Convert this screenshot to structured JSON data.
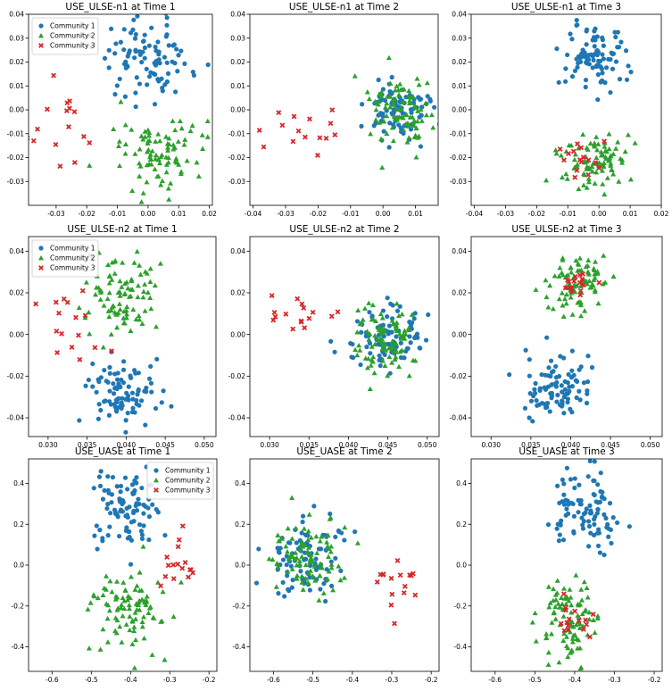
{
  "colors": {
    "Community 1": "#1f77b4",
    "Community 2": "#2ca02c",
    "Community 3": "#d62728"
  },
  "markers": {
    "Community 1": "circle",
    "Community 2": "triangle",
    "Community 3": "x"
  },
  "chart_data": [
    {
      "type": "scatter",
      "title": "USE_ULSE-n1 at Time 1",
      "xlim": [
        -0.039,
        0.021
      ],
      "ylim": [
        -0.04,
        0.04
      ],
      "xticks": [
        "-0.04",
        "-0.03",
        "-0.02",
        "-0.01",
        "0.00",
        "0.01",
        "0.02"
      ],
      "xtick_values": [
        -0.04,
        -0.03,
        -0.02,
        -0.01,
        0.0,
        0.01,
        0.02
      ],
      "yticks": [
        "-0.03",
        "-0.02",
        "-0.01",
        "0.00",
        "0.01",
        "0.02",
        "0.03",
        "0.04"
      ],
      "ytick_values": [
        -0.03,
        -0.02,
        -0.01,
        0.0,
        0.01,
        0.02,
        0.03,
        0.04
      ],
      "legend": {
        "placement": "upper-left",
        "entries": [
          "Community 1",
          "Community 2",
          "Community 3"
        ]
      },
      "series": [
        {
          "name": "Community 1",
          "cx": 0.0,
          "cy": 0.021,
          "sx": 0.0075,
          "sy": 0.0085,
          "n": 95
        },
        {
          "name": "Community 2",
          "cx": 0.005,
          "cy": -0.017,
          "sx": 0.007,
          "sy": 0.008,
          "n": 95
        },
        {
          "name": "Community 3",
          "cx": -0.025,
          "cy": -0.005,
          "sx": 0.007,
          "sy": 0.009,
          "n": 16
        }
      ]
    },
    {
      "type": "scatter",
      "title": "USE_ULSE-n1 at Time 2",
      "xlim": [
        -0.041,
        0.017
      ],
      "ylim": [
        -0.04,
        0.04
      ],
      "xticks": [
        "-0.04",
        "-0.03",
        "-0.02",
        "-0.01",
        "0.00",
        "0.01"
      ],
      "xtick_values": [
        -0.04,
        -0.03,
        -0.02,
        -0.01,
        0.0,
        0.01
      ],
      "yticks": [
        "-0.03",
        "-0.02",
        "-0.01",
        "0.00",
        "0.01",
        "0.02",
        "0.03",
        "0.04"
      ],
      "ytick_values": [
        -0.03,
        -0.02,
        -0.01,
        0.0,
        0.01,
        0.02,
        0.03,
        0.04
      ],
      "series": [
        {
          "name": "Community 1",
          "cx": 0.004,
          "cy": 0.0,
          "sx": 0.005,
          "sy": 0.006,
          "n": 95
        },
        {
          "name": "Community 2",
          "cx": 0.005,
          "cy": 0.0,
          "sx": 0.005,
          "sy": 0.0065,
          "n": 95
        },
        {
          "name": "Community 3",
          "cx": -0.023,
          "cy": -0.007,
          "sx": 0.007,
          "sy": 0.005,
          "n": 16
        }
      ]
    },
    {
      "type": "scatter",
      "title": "USE_ULSE-n1 at Time 3",
      "xlim": [
        -0.041,
        0.02
      ],
      "ylim": [
        -0.04,
        0.04
      ],
      "xticks": [
        "-0.04",
        "-0.03",
        "-0.02",
        "-0.01",
        "0.00",
        "0.01",
        "0.02"
      ],
      "xtick_values": [
        -0.04,
        -0.03,
        -0.02,
        -0.01,
        0.0,
        0.01,
        0.02
      ],
      "yticks": [
        "-0.03",
        "-0.02",
        "-0.01",
        "0.00",
        "0.01",
        "0.02",
        "0.03",
        "0.04"
      ],
      "ytick_values": [
        -0.03,
        -0.02,
        -0.01,
        0.0,
        0.01,
        0.02,
        0.03,
        0.04
      ],
      "series": [
        {
          "name": "Community 1",
          "cx": -0.002,
          "cy": 0.022,
          "sx": 0.0055,
          "sy": 0.0065,
          "n": 95
        },
        {
          "name": "Community 2",
          "cx": -0.001,
          "cy": -0.021,
          "sx": 0.006,
          "sy": 0.0065,
          "n": 95
        },
        {
          "name": "Community 3",
          "cx": -0.006,
          "cy": -0.02,
          "sx": 0.004,
          "sy": 0.004,
          "n": 16
        }
      ]
    },
    {
      "type": "scatter",
      "title": "USE_ULSE-n2 at Time 1",
      "xlim": [
        0.0275,
        0.0515
      ],
      "ylim": [
        -0.049,
        0.047
      ],
      "xticks": [
        "0.030",
        "0.035",
        "0.040",
        "0.045",
        "0.050"
      ],
      "xtick_values": [
        0.03,
        0.035,
        0.04,
        0.045,
        0.05
      ],
      "yticks": [
        "-0.04",
        "-0.02",
        "0.00",
        "0.02",
        "0.04"
      ],
      "ytick_values": [
        -0.04,
        -0.02,
        0.0,
        0.02,
        0.04
      ],
      "legend": {
        "placement": "upper-left",
        "entries": [
          "Community 1",
          "Community 2",
          "Community 3"
        ]
      },
      "series": [
        {
          "name": "Community 1",
          "cx": 0.0397,
          "cy": -0.027,
          "sx": 0.0022,
          "sy": 0.008,
          "n": 95
        },
        {
          "name": "Community 2",
          "cx": 0.0395,
          "cy": 0.02,
          "sx": 0.0023,
          "sy": 0.009,
          "n": 95
        },
        {
          "name": "Community 3",
          "cx": 0.033,
          "cy": 0.003,
          "sx": 0.0025,
          "sy": 0.01,
          "n": 16
        }
      ]
    },
    {
      "type": "scatter",
      "title": "USE_ULSE-n2 at Time 2",
      "xlim": [
        0.0275,
        0.0515
      ],
      "ylim": [
        -0.049,
        0.047
      ],
      "xticks": [
        "0.030",
        "0.035",
        "0.040",
        "0.045",
        "0.050"
      ],
      "xtick_values": [
        0.03,
        0.035,
        0.04,
        0.045,
        0.05
      ],
      "yticks": [
        "-0.04",
        "-0.02",
        "0.00",
        "0.02",
        "0.04"
      ],
      "ytick_values": [
        -0.04,
        -0.02,
        0.0,
        0.02,
        0.04
      ],
      "series": [
        {
          "name": "Community 1",
          "cx": 0.0445,
          "cy": -0.003,
          "sx": 0.0022,
          "sy": 0.008,
          "n": 95
        },
        {
          "name": "Community 2",
          "cx": 0.0445,
          "cy": -0.003,
          "sx": 0.0022,
          "sy": 0.0085,
          "n": 95
        },
        {
          "name": "Community 3",
          "cx": 0.034,
          "cy": 0.009,
          "sx": 0.0022,
          "sy": 0.005,
          "n": 16
        }
      ]
    },
    {
      "type": "scatter",
      "title": "USE_ULSE-n2 at Time 3",
      "xlim": [
        0.0275,
        0.0515
      ],
      "ylim": [
        -0.049,
        0.047
      ],
      "xticks": [
        "0.030",
        "0.035",
        "0.040",
        "0.045",
        "0.050"
      ],
      "xtick_values": [
        0.03,
        0.035,
        0.04,
        0.045,
        0.05
      ],
      "yticks": [
        "-0.04",
        "-0.02",
        "0.00",
        "0.02",
        "0.04"
      ],
      "ytick_values": [
        -0.04,
        -0.02,
        0.0,
        0.02,
        0.04
      ],
      "series": [
        {
          "name": "Community 1",
          "cx": 0.0385,
          "cy": -0.025,
          "sx": 0.0022,
          "sy": 0.008,
          "n": 95
        },
        {
          "name": "Community 2",
          "cx": 0.0405,
          "cy": 0.025,
          "sx": 0.0018,
          "sy": 0.008,
          "n": 95
        },
        {
          "name": "Community 3",
          "cx": 0.0405,
          "cy": 0.025,
          "sx": 0.0013,
          "sy": 0.005,
          "n": 16
        }
      ]
    },
    {
      "type": "scatter",
      "title": "USE_UASE at Time 1",
      "xlim": [
        -0.66,
        -0.18
      ],
      "ylim": [
        -0.52,
        0.52
      ],
      "xticks": [
        "-0.6",
        "-0.5",
        "-0.4",
        "-0.3",
        "-0.2"
      ],
      "xtick_values": [
        -0.6,
        -0.5,
        -0.4,
        -0.3,
        -0.2
      ],
      "yticks": [
        "-0.4",
        "-0.2",
        "0.0",
        "0.2",
        "0.4"
      ],
      "ytick_values": [
        -0.4,
        -0.2,
        0.0,
        0.2,
        0.4
      ],
      "legend": {
        "placement": "upper-right",
        "entries": [
          "Community 1",
          "Community 2",
          "Community 3"
        ]
      },
      "series": [
        {
          "name": "Community 1",
          "cx": -0.41,
          "cy": 0.27,
          "sx": 0.04,
          "sy": 0.09,
          "n": 95
        },
        {
          "name": "Community 2",
          "cx": -0.4,
          "cy": -0.23,
          "sx": 0.05,
          "sy": 0.1,
          "n": 95
        },
        {
          "name": "Community 3",
          "cx": -0.27,
          "cy": -0.02,
          "sx": 0.03,
          "sy": 0.08,
          "n": 16
        }
      ]
    },
    {
      "type": "scatter",
      "title": "USE_UASE at Time 2",
      "xlim": [
        -0.66,
        -0.18
      ],
      "ylim": [
        -0.52,
        0.52
      ],
      "xticks": [
        "-0.6",
        "-0.5",
        "-0.4",
        "-0.3",
        "-0.2"
      ],
      "xtick_values": [
        -0.6,
        -0.5,
        -0.4,
        -0.3,
        -0.2
      ],
      "yticks": [
        "-0.4",
        "-0.2",
        "0.0",
        "0.2",
        "0.4"
      ],
      "ytick_values": [
        -0.4,
        -0.2,
        0.0,
        0.2,
        0.4
      ],
      "series": [
        {
          "name": "Community 1",
          "cx": -0.52,
          "cy": 0.03,
          "sx": 0.045,
          "sy": 0.09,
          "n": 95
        },
        {
          "name": "Community 2",
          "cx": -0.51,
          "cy": 0.03,
          "sx": 0.045,
          "sy": 0.09,
          "n": 95
        },
        {
          "name": "Community 3",
          "cx": -0.285,
          "cy": -0.08,
          "sx": 0.035,
          "sy": 0.06,
          "n": 16
        }
      ]
    },
    {
      "type": "scatter",
      "title": "USE_UASE at Time 3",
      "xlim": [
        -0.66,
        -0.18
      ],
      "ylim": [
        -0.52,
        0.52
      ],
      "xticks": [
        "-0.6",
        "-0.5",
        "-0.4",
        "-0.3",
        "-0.2"
      ],
      "xtick_values": [
        -0.6,
        -0.5,
        -0.4,
        -0.3,
        -0.2
      ],
      "yticks": [
        "-0.4",
        "-0.2",
        "0.0",
        "0.2",
        "0.4"
      ],
      "ytick_values": [
        -0.4,
        -0.2,
        0.0,
        0.2,
        0.4
      ],
      "series": [
        {
          "name": "Community 1",
          "cx": -0.37,
          "cy": 0.27,
          "sx": 0.04,
          "sy": 0.09,
          "n": 95
        },
        {
          "name": "Community 2",
          "cx": -0.42,
          "cy": -0.27,
          "sx": 0.04,
          "sy": 0.09,
          "n": 95
        },
        {
          "name": "Community 3",
          "cx": -0.41,
          "cy": -0.26,
          "sx": 0.03,
          "sy": 0.06,
          "n": 16
        }
      ]
    }
  ]
}
